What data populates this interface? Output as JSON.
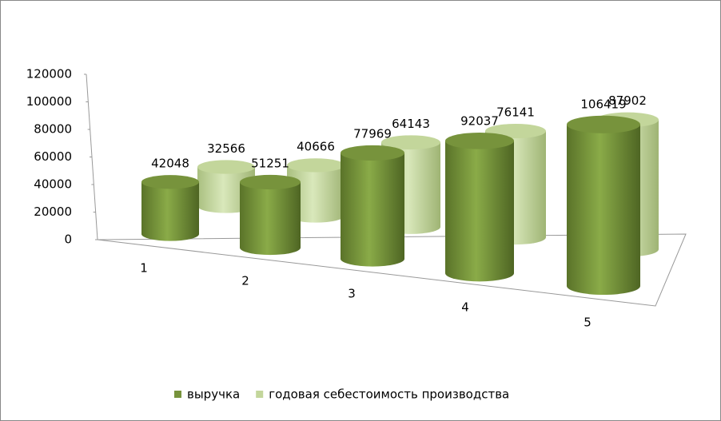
{
  "chart_data": {
    "type": "cylinder3d",
    "categories": [
      "1",
      "2",
      "3",
      "4",
      "5"
    ],
    "series": [
      {
        "name": "выручка",
        "color": "#77933c",
        "values": [
          42048,
          51251,
          77969,
          92037,
          106419
        ]
      },
      {
        "name": "годовая себестоимость производства",
        "color": "#c3d69b",
        "values": [
          32566,
          40666,
          64143,
          76141,
          87902
        ]
      }
    ],
    "ylim": [
      0,
      120000
    ],
    "yticks": [
      0,
      20000,
      40000,
      60000,
      80000,
      100000,
      120000
    ],
    "legend": "bottom"
  }
}
